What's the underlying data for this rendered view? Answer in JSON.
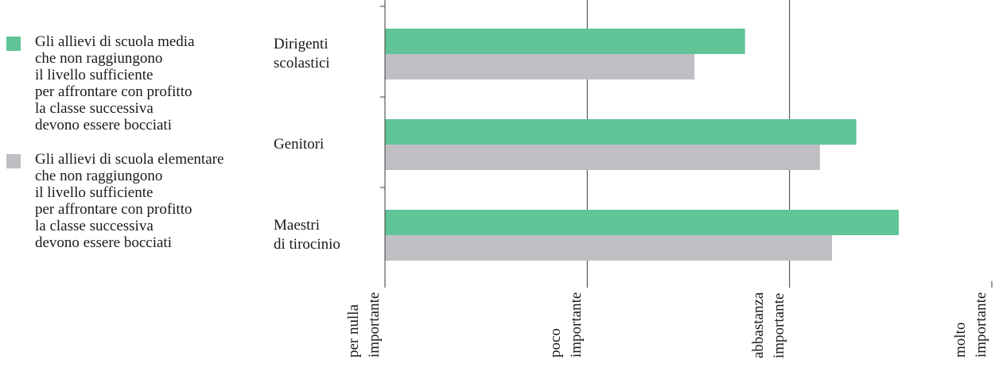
{
  "colors": {
    "series1": "#60c497",
    "series2": "#bfbec3",
    "axis": "#3a3a3a"
  },
  "legend": [
    {
      "text": "Gli allievi di scuola media\nche non raggiungono\nil livello sufficiente\nper affrontare con profitto\nla classe successiva\ndevono essere bocciati",
      "color": "#60c497"
    },
    {
      "text": "Gli allievi di scuola elementare\nche non raggiungono\nil livello sufficiente\nper affrontare con profitto\nla classe successiva\ndevono essere bocciati",
      "color": "#bfbec3"
    }
  ],
  "chart_data": {
    "type": "bar",
    "orientation": "horizontal",
    "categories": [
      "Dirigenti\nscolastici",
      "Genitori",
      "Maestri\ndi tirocinio"
    ],
    "series": [
      {
        "name": "Gli allievi di scuola media che non raggiungono il livello sufficiente per affrontare con profitto la classe successiva devono essere bocciati",
        "values": [
          2.78,
          3.33,
          3.54
        ]
      },
      {
        "name": "Gli allievi di scuola elementare che non raggiungono il livello sufficiente per affrontare con profitto la classe successiva devono essere bocciati",
        "values": [
          2.53,
          3.15,
          3.21
        ]
      }
    ],
    "xlim": [
      1,
      4
    ],
    "xticks": [
      1,
      2,
      3,
      4
    ],
    "xtick_labels": [
      "per nulla\nimportante",
      "poco\nimportante",
      "abbastanza\nimportante",
      "molto\nimportante"
    ],
    "grid": "vertical",
    "legend_position": "left"
  }
}
